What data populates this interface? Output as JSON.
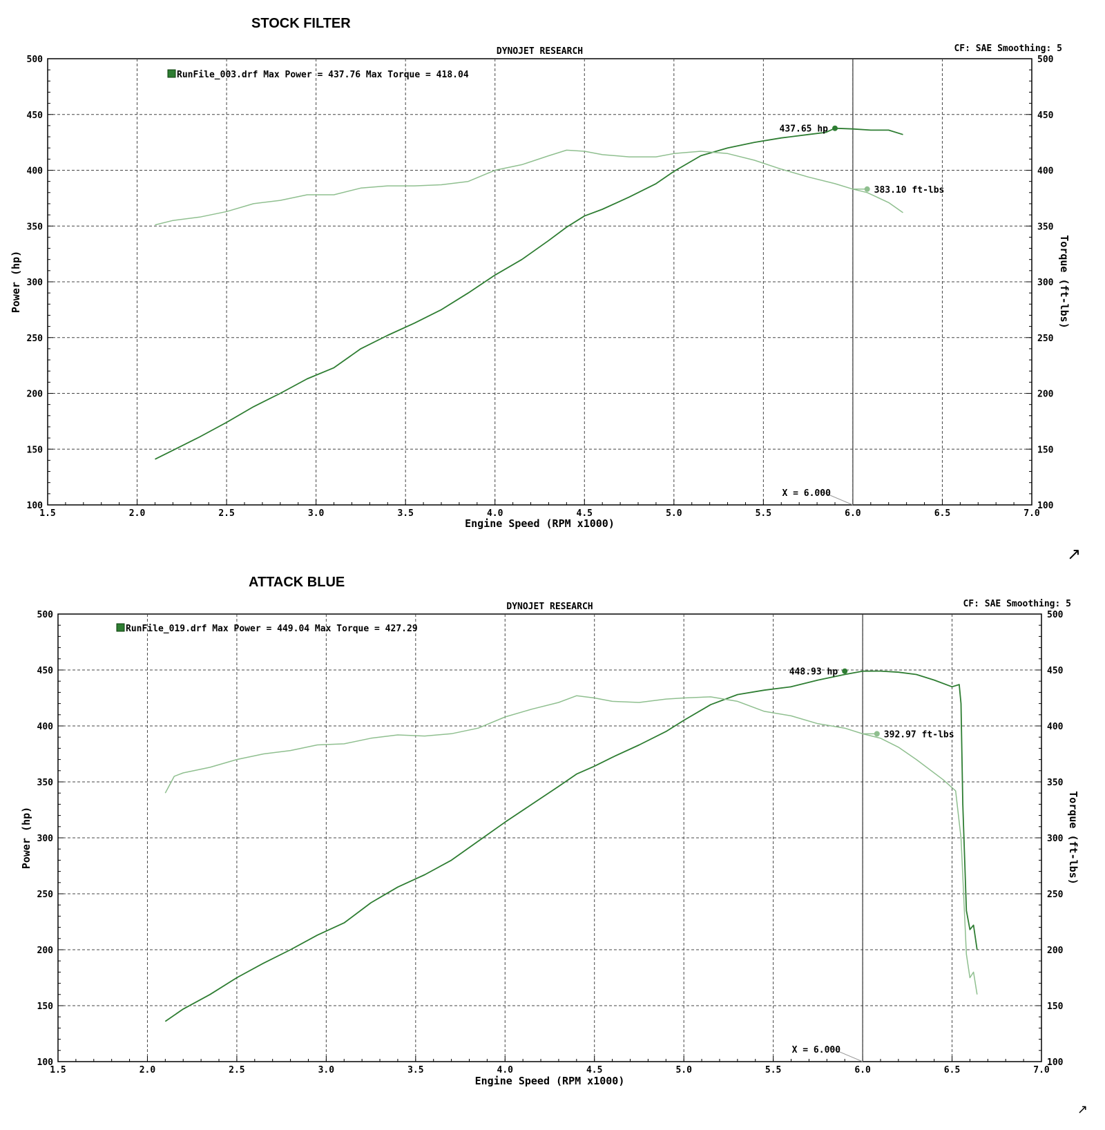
{
  "charts": [
    {
      "page_title": "STOCK FILTER",
      "header": "DYNOJET RESEARCH",
      "cf_label": "CF: SAE  Smoothing: 5",
      "legend": "RunFile_003.drf Max Power = 437.76    Max Torque = 418.04",
      "xlabel": "Engine Speed (RPM x1000)",
      "ylabel_left": "Power (hp)",
      "ylabel_right": "Torque (ft-lbs)",
      "cursor_label": "X = 6.000",
      "hp_marker_label": "437.65 hp",
      "tq_marker_label": "383.10 ft-lbs",
      "resize_icon": "resize-arrow-icon"
    },
    {
      "page_title": "ATTACK BLUE",
      "header": "DYNOJET RESEARCH",
      "cf_label": "CF: SAE  Smoothing: 5",
      "legend": "RunFile_019.drf Max Power = 449.04    Max Torque = 427.29",
      "xlabel": "Engine Speed (RPM x1000)",
      "ylabel_left": "Power (hp)",
      "ylabel_right": "Torque (ft-lbs)",
      "cursor_label": "X = 6.000",
      "hp_marker_label": "448.93 hp",
      "tq_marker_label": "392.97 ft-lbs",
      "resize_icon": "resize-arrow-icon"
    }
  ],
  "chart_data": [
    {
      "type": "line",
      "title": "DYNOJET RESEARCH",
      "xlabel": "Engine Speed (RPM x1000)",
      "ylabel": "Power (hp)",
      "y2label": "Torque (ft-lbs)",
      "xlim": [
        1.5,
        7.0
      ],
      "ylim": [
        100,
        500
      ],
      "x_ticks": [
        "1.5",
        "2.0",
        "2.5",
        "3.0",
        "3.5",
        "4.0",
        "4.5",
        "5.0",
        "5.5",
        "6.0",
        "6.5",
        "7.0"
      ],
      "y_ticks": [
        "100",
        "150",
        "200",
        "250",
        "300",
        "350",
        "400",
        "450",
        "500"
      ],
      "grid": true,
      "cursor_x": 6.0,
      "colors": {
        "power": "#2e7d32",
        "torque": "#8fbf8f"
      },
      "series": [
        {
          "name": "Power",
          "x": [
            2.1,
            2.2,
            2.35,
            2.5,
            2.65,
            2.8,
            2.95,
            3.1,
            3.25,
            3.4,
            3.55,
            3.7,
            3.85,
            4.0,
            4.15,
            4.3,
            4.4,
            4.5,
            4.6,
            4.75,
            4.9,
            5.0,
            5.15,
            5.3,
            5.45,
            5.6,
            5.75,
            5.85,
            5.9,
            6.0,
            6.1,
            6.2,
            6.28
          ],
          "values": [
            141,
            149,
            161,
            174,
            188,
            200,
            213,
            223,
            240,
            252,
            263,
            275,
            290,
            306,
            320,
            337,
            349,
            359,
            365,
            376,
            388,
            399,
            413,
            420,
            425,
            429,
            432,
            434,
            437.65,
            437,
            436,
            436,
            432
          ]
        },
        {
          "name": "Torque",
          "x": [
            2.1,
            2.2,
            2.35,
            2.5,
            2.65,
            2.8,
            2.95,
            3.1,
            3.25,
            3.4,
            3.55,
            3.7,
            3.85,
            4.0,
            4.15,
            4.3,
            4.4,
            4.5,
            4.6,
            4.75,
            4.9,
            5.0,
            5.15,
            5.3,
            5.45,
            5.6,
            5.75,
            5.9,
            6.0,
            6.08,
            6.2,
            6.28
          ],
          "values": [
            351,
            355,
            358,
            363,
            370,
            373,
            378,
            378,
            384,
            386,
            386,
            387,
            390,
            400,
            405,
            413,
            418,
            417,
            414,
            412,
            412,
            415,
            417,
            415,
            409,
            401,
            394,
            388,
            383.1,
            380,
            371,
            362
          ]
        }
      ],
      "annotations": [
        {
          "x": 5.9,
          "y": 437.65,
          "text": "437.65 hp"
        },
        {
          "x": 6.08,
          "y": 383.1,
          "text": "383.10 ft-lbs"
        }
      ]
    },
    {
      "type": "line",
      "title": "DYNOJET RESEARCH",
      "xlabel": "Engine Speed (RPM x1000)",
      "ylabel": "Power (hp)",
      "y2label": "Torque (ft-lbs)",
      "xlim": [
        1.5,
        7.0
      ],
      "ylim": [
        100,
        500
      ],
      "x_ticks": [
        "1.5",
        "2.0",
        "2.5",
        "3.0",
        "3.5",
        "4.0",
        "4.5",
        "5.0",
        "5.5",
        "6.0",
        "6.5",
        "7.0"
      ],
      "y_ticks": [
        "100",
        "150",
        "200",
        "250",
        "300",
        "350",
        "400",
        "450",
        "500"
      ],
      "grid": true,
      "cursor_x": 6.0,
      "colors": {
        "power": "#2e7d32",
        "torque": "#8fbf8f"
      },
      "series": [
        {
          "name": "Power",
          "x": [
            2.1,
            2.2,
            2.35,
            2.5,
            2.65,
            2.8,
            2.95,
            3.1,
            3.25,
            3.4,
            3.55,
            3.7,
            3.85,
            4.0,
            4.15,
            4.3,
            4.4,
            4.5,
            4.6,
            4.75,
            4.9,
            5.0,
            5.15,
            5.3,
            5.45,
            5.6,
            5.75,
            5.9,
            6.0,
            6.1,
            6.2,
            6.3,
            6.4,
            6.5,
            6.54,
            6.55,
            6.56,
            6.58,
            6.6,
            6.62,
            6.64
          ],
          "values": [
            136,
            147,
            160,
            175,
            188,
            200,
            213,
            224,
            242,
            256,
            267,
            280,
            297,
            314,
            330,
            346,
            357,
            364,
            372,
            383,
            395,
            405,
            419,
            428,
            432,
            435,
            441,
            446,
            448.93,
            449,
            448,
            446,
            441,
            435,
            437,
            420,
            330,
            235,
            218,
            222,
            200
          ]
        },
        {
          "name": "Torque",
          "x": [
            2.1,
            2.15,
            2.2,
            2.35,
            2.5,
            2.65,
            2.8,
            2.95,
            3.1,
            3.25,
            3.4,
            3.55,
            3.7,
            3.85,
            4.0,
            4.15,
            4.3,
            4.4,
            4.5,
            4.6,
            4.75,
            4.9,
            5.0,
            5.15,
            5.3,
            5.45,
            5.6,
            5.75,
            5.9,
            6.0,
            6.1,
            6.2,
            6.3,
            6.45,
            6.52,
            6.55,
            6.58,
            6.6,
            6.62,
            6.64
          ],
          "values": [
            340,
            355,
            358,
            363,
            370,
            375,
            378,
            383,
            384,
            389,
            392,
            391,
            393,
            398,
            408,
            415,
            421,
            427,
            425,
            422,
            421,
            424,
            425,
            426,
            422,
            413,
            409,
            402,
            398,
            392.97,
            389,
            381,
            370,
            352,
            342,
            300,
            196,
            175,
            180,
            160
          ]
        }
      ],
      "annotations": [
        {
          "x": 5.9,
          "y": 448.93,
          "text": "448.93 hp"
        },
        {
          "x": 6.08,
          "y": 392.97,
          "text": "392.97 ft-lbs"
        }
      ]
    }
  ]
}
